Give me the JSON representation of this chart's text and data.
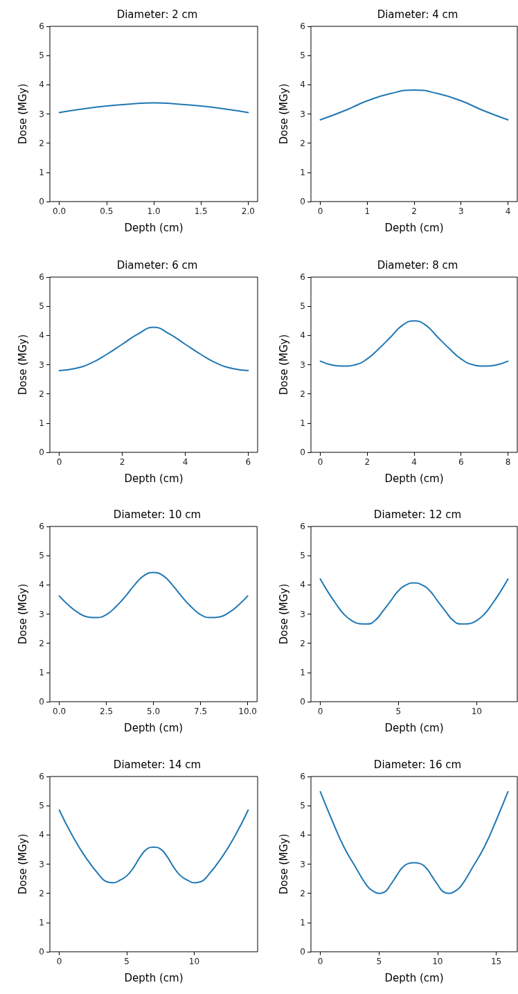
{
  "chart_data": [
    {
      "type": "line",
      "title": "Diameter: 2 cm",
      "xlabel": "Depth (cm)",
      "ylabel": "Dose (MGy)",
      "xlim": [
        -0.1,
        2.1
      ],
      "xticks": [
        {
          "value": 0,
          "label": "0.0"
        },
        {
          "value": 0.5,
          "label": "0.5"
        },
        {
          "value": 1,
          "label": "1.0"
        },
        {
          "value": 1.5,
          "label": "1.5"
        },
        {
          "value": 2,
          "label": "2.0"
        }
      ],
      "ylim": [
        0,
        6
      ],
      "yticks": [
        0,
        1,
        2,
        3,
        4,
        5,
        6
      ],
      "grid": false,
      "series": [
        {
          "color": "#1f77b4",
          "x": [
            0,
            0.25,
            0.5,
            0.75,
            1,
            1.25,
            1.5,
            1.75,
            2
          ],
          "values": [
            3.05,
            3.17,
            3.27,
            3.34,
            3.38,
            3.34,
            3.27,
            3.17,
            3.05
          ]
        }
      ]
    },
    {
      "type": "line",
      "title": "Diameter: 4 cm",
      "xlabel": "Depth (cm)",
      "ylabel": "Dose (MGy)",
      "xlim": [
        -0.2,
        4.2
      ],
      "xticks": [
        0,
        1,
        2,
        3,
        4
      ],
      "ylim": [
        0,
        6
      ],
      "yticks": [
        0,
        1,
        2,
        3,
        4,
        5,
        6
      ],
      "grid": false,
      "series": [
        {
          "color": "#1f77b4",
          "x": [
            0,
            0.5,
            1,
            1.5,
            2,
            2.5,
            3,
            3.5,
            4
          ],
          "values": [
            2.8,
            3.1,
            3.45,
            3.7,
            3.82,
            3.7,
            3.45,
            3.1,
            2.8
          ]
        }
      ]
    },
    {
      "type": "line",
      "title": "Diameter: 6 cm",
      "xlabel": "Depth (cm)",
      "ylabel": "Dose (MGy)",
      "xlim": [
        -0.3,
        6.3
      ],
      "xticks": [
        0,
        2,
        4,
        6
      ],
      "ylim": [
        0,
        6
      ],
      "yticks": [
        0,
        1,
        2,
        3,
        4,
        5,
        6
      ],
      "grid": false,
      "series": [
        {
          "color": "#1f77b4",
          "x": [
            0,
            0.5,
            1,
            1.5,
            2,
            2.5,
            3,
            3.5,
            4,
            4.5,
            5,
            5.5,
            6
          ],
          "values": [
            2.8,
            2.87,
            3.05,
            3.35,
            3.7,
            4.05,
            4.28,
            4.05,
            3.7,
            3.35,
            3.05,
            2.87,
            2.8
          ]
        }
      ]
    },
    {
      "type": "line",
      "title": "Diameter: 8 cm",
      "xlabel": "Depth (cm)",
      "ylabel": "Dose (MGy)",
      "xlim": [
        -0.4,
        8.4
      ],
      "xticks": [
        0,
        2,
        4,
        6,
        8
      ],
      "ylim": [
        0,
        6
      ],
      "yticks": [
        0,
        1,
        2,
        3,
        4,
        5,
        6
      ],
      "grid": false,
      "series": [
        {
          "color": "#1f77b4",
          "x": [
            0,
            0.5,
            1,
            1.5,
            2,
            2.5,
            3,
            3.5,
            4,
            4.5,
            5,
            5.5,
            6,
            6.5,
            7,
            7.5,
            8
          ],
          "values": [
            3.12,
            2.99,
            2.95,
            3.0,
            3.2,
            3.55,
            3.95,
            4.35,
            4.5,
            4.35,
            3.95,
            3.55,
            3.2,
            3.0,
            2.95,
            2.99,
            3.12
          ]
        }
      ]
    },
    {
      "type": "line",
      "title": "Diameter: 10 cm",
      "xlabel": "Depth (cm)",
      "ylabel": "Dose (MGy)",
      "xlim": [
        -0.5,
        10.5
      ],
      "xticks": [
        {
          "value": 0,
          "label": "0.0"
        },
        {
          "value": 2.5,
          "label": "2.5"
        },
        {
          "value": 5,
          "label": "5.0"
        },
        {
          "value": 7.5,
          "label": "7.5"
        },
        {
          "value": 10,
          "label": "10.0"
        }
      ],
      "ylim": [
        0,
        6
      ],
      "yticks": [
        0,
        1,
        2,
        3,
        4,
        5,
        6
      ],
      "grid": false,
      "series": [
        {
          "color": "#1f77b4",
          "x": [
            0,
            0.5,
            1,
            1.5,
            2,
            2.5,
            3,
            3.5,
            4,
            4.5,
            5,
            5.5,
            6,
            6.5,
            7,
            7.5,
            8,
            8.5,
            9,
            9.5,
            10
          ],
          "values": [
            3.62,
            3.3,
            3.05,
            2.9,
            2.88,
            2.98,
            3.25,
            3.6,
            4.0,
            4.32,
            4.42,
            4.32,
            4.0,
            3.6,
            3.25,
            2.98,
            2.88,
            2.9,
            3.05,
            3.3,
            3.62
          ]
        }
      ]
    },
    {
      "type": "line",
      "title": "Diameter: 12 cm",
      "xlabel": "Depth (cm)",
      "ylabel": "Dose (MGy)",
      "xlim": [
        -0.6,
        12.6
      ],
      "xticks": [
        0,
        5,
        10
      ],
      "ylim": [
        0,
        6
      ],
      "yticks": [
        0,
        1,
        2,
        3,
        4,
        5,
        6
      ],
      "grid": false,
      "series": [
        {
          "color": "#1f77b4",
          "x": [
            0,
            0.5,
            1,
            1.5,
            2,
            2.5,
            3,
            3.5,
            4,
            4.5,
            5,
            5.5,
            6,
            6.5,
            7,
            7.5,
            8,
            8.5,
            9,
            9.5,
            10,
            10.5,
            11,
            11.5,
            12
          ],
          "values": [
            4.2,
            3.75,
            3.35,
            3.0,
            2.78,
            2.67,
            2.66,
            2.78,
            3.1,
            3.45,
            3.8,
            4.0,
            4.07,
            4.0,
            3.8,
            3.45,
            3.1,
            2.78,
            2.66,
            2.67,
            2.78,
            3.0,
            3.35,
            3.75,
            4.2
          ]
        }
      ]
    },
    {
      "type": "line",
      "title": "Diameter: 14 cm",
      "xlabel": "Depth (cm)",
      "ylabel": "Dose (MGy)",
      "xlim": [
        -0.7,
        14.7
      ],
      "xticks": [
        0,
        5,
        10
      ],
      "ylim": [
        0,
        6
      ],
      "yticks": [
        0,
        1,
        2,
        3,
        4,
        5,
        6
      ],
      "grid": false,
      "series": [
        {
          "color": "#1f77b4",
          "x": [
            0,
            1,
            2,
            3,
            3.5,
            4,
            4.5,
            5,
            5.5,
            6,
            6.5,
            7,
            7.5,
            8,
            8.5,
            9,
            9.5,
            10,
            10.5,
            11,
            12,
            13,
            14
          ],
          "values": [
            4.85,
            3.95,
            3.2,
            2.6,
            2.4,
            2.36,
            2.45,
            2.6,
            2.88,
            3.25,
            3.52,
            3.58,
            3.52,
            3.25,
            2.88,
            2.6,
            2.45,
            2.36,
            2.4,
            2.6,
            3.2,
            3.95,
            4.85
          ]
        }
      ]
    },
    {
      "type": "line",
      "title": "Diameter: 16 cm",
      "xlabel": "Depth (cm)",
      "ylabel": "Dose (MGy)",
      "xlim": [
        -0.8,
        16.8
      ],
      "xticks": [
        0,
        5,
        10,
        15
      ],
      "ylim": [
        0,
        6
      ],
      "yticks": [
        0,
        1,
        2,
        3,
        4,
        5,
        6
      ],
      "grid": false,
      "series": [
        {
          "color": "#1f77b4",
          "x": [
            0,
            1,
            2,
            3,
            4,
            4.5,
            5,
            5.5,
            6,
            6.5,
            7,
            7.5,
            8,
            8.5,
            9,
            9.5,
            10,
            10.5,
            11,
            11.5,
            12,
            13,
            14,
            15,
            16
          ],
          "values": [
            5.48,
            4.5,
            3.6,
            2.9,
            2.25,
            2.08,
            2.0,
            2.05,
            2.3,
            2.6,
            2.88,
            3.02,
            3.05,
            3.02,
            2.88,
            2.6,
            2.3,
            2.05,
            2.0,
            2.08,
            2.25,
            2.9,
            3.6,
            4.5,
            5.48
          ]
        }
      ]
    }
  ]
}
